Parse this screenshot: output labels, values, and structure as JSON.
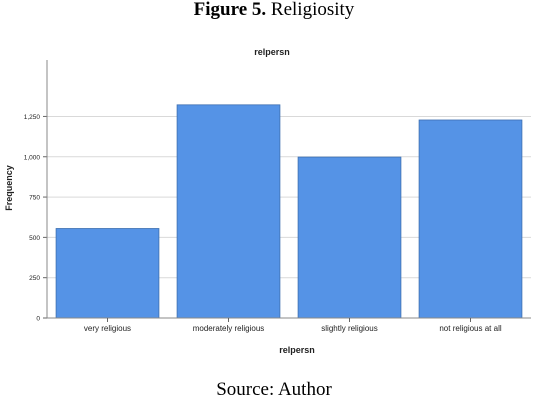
{
  "figure": {
    "label": "Figure 5.",
    "caption": "Religiosity",
    "source": "Source: Author"
  },
  "chart_data": {
    "type": "bar",
    "title": "relpersn",
    "xlabel": "relpersn",
    "ylabel": "Frequency",
    "categories": [
      "very religious",
      "moderately religious",
      "slightly religious",
      "not religious at all"
    ],
    "values": [
      555,
      1322,
      998,
      1228
    ],
    "ylim": [
      0,
      1600
    ],
    "yticks": [
      0,
      250,
      500,
      750,
      1000,
      1250
    ],
    "ytick_labels": [
      "0",
      "250",
      "500",
      "750",
      "1,000",
      "1,250"
    ],
    "grid": true,
    "bar_color": "#5593e6",
    "bar_edge_color": "#3d6fb0",
    "gridline_color": "#d9d9d9"
  }
}
